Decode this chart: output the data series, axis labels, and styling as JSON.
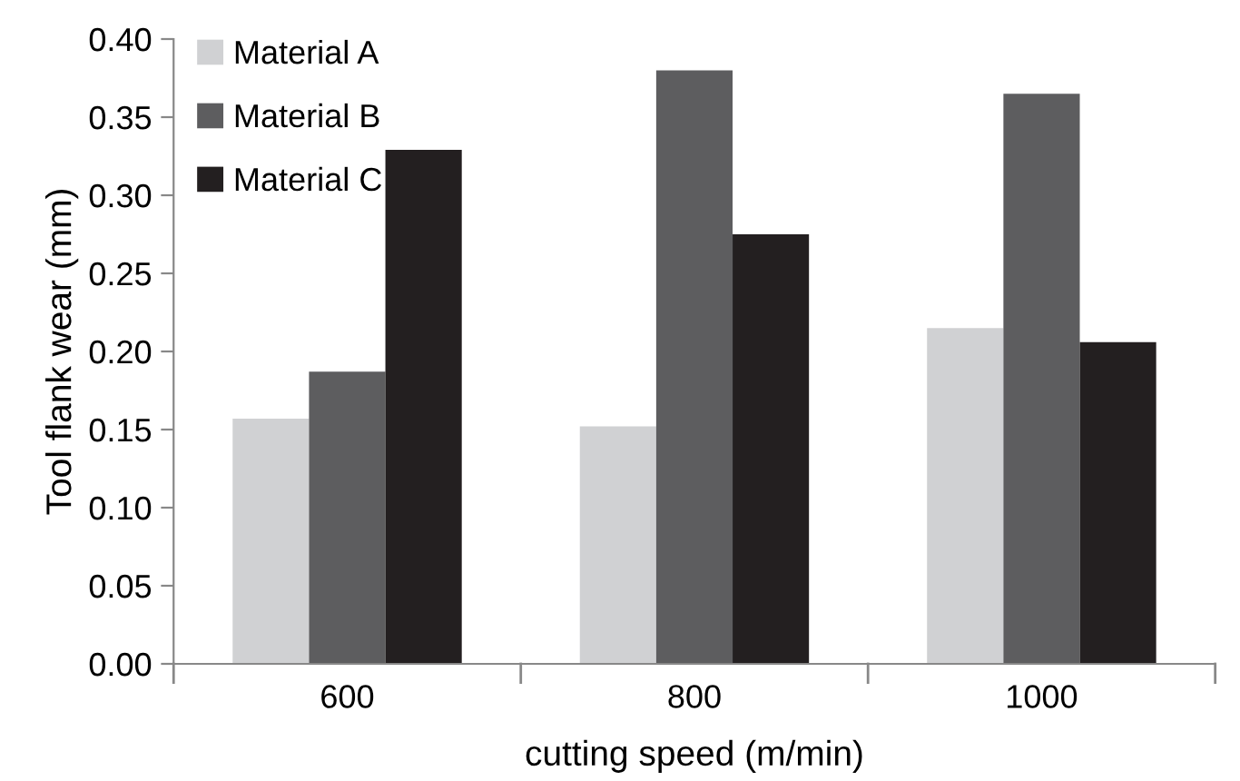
{
  "chart_data": {
    "type": "bar",
    "xlabel": "cutting speed (m/min)",
    "ylabel": "Tool flank wear (mm)",
    "categories": [
      "600",
      "800",
      "1000"
    ],
    "series": [
      {
        "name": "Material A",
        "color": "#d0d1d3",
        "values": [
          0.157,
          0.152,
          0.215
        ]
      },
      {
        "name": "Material B",
        "color": "#5d5d5f",
        "values": [
          0.187,
          0.38,
          0.365
        ]
      },
      {
        "name": "Material C",
        "color": "#231f20",
        "values": [
          0.329,
          0.275,
          0.206
        ]
      }
    ],
    "ylim": [
      0,
      0.4
    ],
    "yticks": [
      {
        "value": 0,
        "label": "0.00"
      },
      {
        "value": 0.05,
        "label": "0.05"
      },
      {
        "value": 0.1,
        "label": "0.10"
      },
      {
        "value": 0.15,
        "label": "0.15"
      },
      {
        "value": 0.2,
        "label": "0.20"
      },
      {
        "value": 0.25,
        "label": "0.25"
      },
      {
        "value": 0.3,
        "label": "0.30"
      },
      {
        "value": 0.35,
        "label": "0.35"
      },
      {
        "value": 0.4,
        "label": "0.40"
      }
    ],
    "grid": false,
    "legend": "top left"
  }
}
